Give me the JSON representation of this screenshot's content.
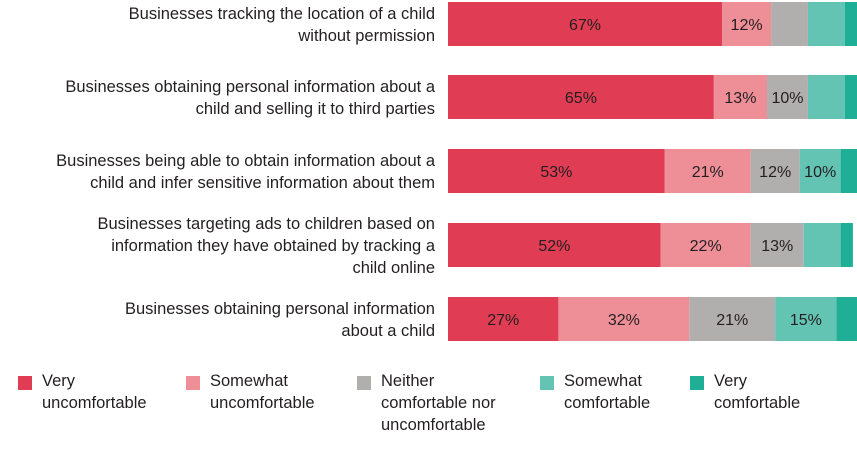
{
  "chart_data": {
    "type": "bar",
    "orientation": "horizontal",
    "stacked": true,
    "xlim": [
      0,
      100
    ],
    "grid": false,
    "legend_position": "bottom",
    "categories": [
      "Businesses tracking the location of a child without permission",
      "Businesses obtaining personal information about a child and selling it to third parties",
      "Businesses being able to obtain information about a child and infer sensitive information about them",
      "Businesses targeting ads to children based on information they have obtained by tracking a child online",
      "Businesses obtaining personal information about a child"
    ],
    "series": [
      {
        "name": "Very uncomfortable",
        "color": "#e03c53",
        "values": [
          67,
          65,
          53,
          52,
          27
        ]
      },
      {
        "name": "Somewhat uncomfortable",
        "color": "#ee8f98",
        "values": [
          12,
          13,
          21,
          22,
          32
        ]
      },
      {
        "name": "Neither comfortable nor uncomfortable",
        "color": "#b1aeae",
        "values": [
          9,
          10,
          12,
          13,
          21
        ]
      },
      {
        "name": "Somewhat comfortable",
        "color": "#64c4b4",
        "values": [
          9,
          9,
          10,
          9,
          15
        ]
      },
      {
        "name": "Very comfortable",
        "color": "#1eaf96",
        "values": [
          3,
          3,
          4,
          3,
          5
        ]
      }
    ],
    "data_labels": [
      [
        "67%",
        "12%",
        "",
        "",
        ""
      ],
      [
        "65%",
        "13%",
        "10%",
        "",
        ""
      ],
      [
        "53%",
        "21%",
        "12%",
        "10%",
        ""
      ],
      [
        "52%",
        "22%",
        "13%",
        "",
        ""
      ],
      [
        "27%",
        "32%",
        "21%",
        "15%",
        ""
      ]
    ]
  },
  "category_label_lines": [
    [
      "Businesses tracking the location of a child",
      "without permission"
    ],
    [
      "Businesses obtaining personal information about a",
      "child and selling it to third parties"
    ],
    [
      "Businesses being able to obtain information about a",
      "child and infer sensitive information about them"
    ],
    [
      "Businesses targeting ads to children based on",
      "information they have obtained by tracking a",
      "child online"
    ],
    [
      "Businesses obtaining personal information",
      "about a child"
    ]
  ],
  "legend": [
    {
      "text": "Very\nuncomfortable",
      "color": "#e03c53"
    },
    {
      "text": "Somewhat\nuncomfortable",
      "color": "#ee8f98"
    },
    {
      "text": "Neither\ncomfortable nor\nuncomfortable",
      "color": "#b1aeae"
    },
    {
      "text": "Somewhat\ncomfortable",
      "color": "#64c4b4"
    },
    {
      "text": "Very\ncomfortable",
      "color": "#1eaf96"
    }
  ]
}
